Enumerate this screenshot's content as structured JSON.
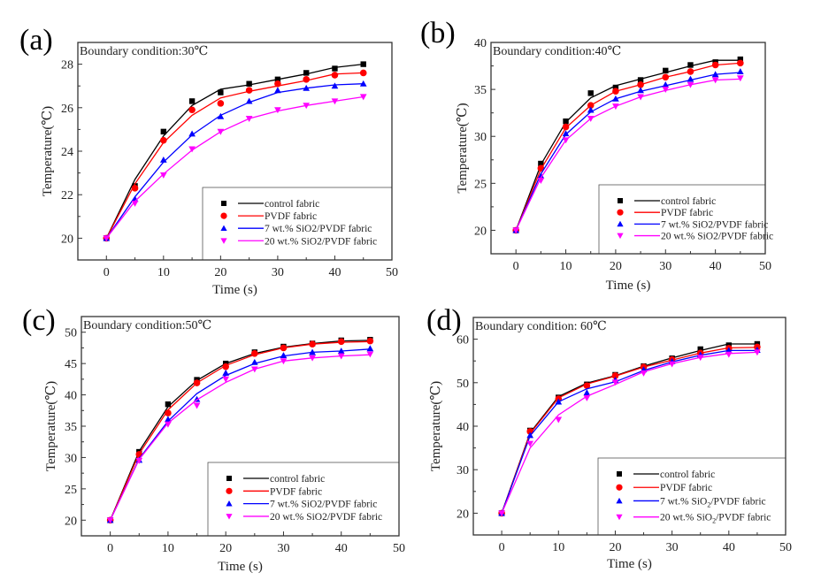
{
  "figure": {
    "series_names": [
      "control fabric",
      "PVDF fabric",
      "7 wt.% SiO2/PVDF fabric",
      "20 wt.% SiO2/PVDF fabric"
    ],
    "series_colors": [
      "#000000",
      "#ff0000",
      "#0000ff",
      "#ff00ff"
    ],
    "series_markers": [
      "square",
      "circle",
      "triangle-up",
      "triangle-down"
    ]
  },
  "chart_data": [
    {
      "type": "line",
      "panel_label": "(a)",
      "annotation": "Boundary condition:30℃",
      "xlabel": "Time (s)",
      "ylabel": "Temperature(℃)",
      "xlim": [
        -5,
        50
      ],
      "ylim": [
        19,
        29
      ],
      "xticks": [
        0,
        10,
        20,
        30,
        40,
        50
      ],
      "yticks": [
        20,
        22,
        24,
        26,
        28
      ],
      "grid": false,
      "legend_position": "bottom-right",
      "x": [
        0,
        5,
        10,
        15,
        20,
        25,
        30,
        35,
        40,
        45
      ],
      "series": [
        {
          "name": "control fabric",
          "marker": "square",
          "color": "#000000",
          "points": [
            20.0,
            22.4,
            24.9,
            26.3,
            26.7,
            27.1,
            27.3,
            27.6,
            27.8,
            28.0
          ],
          "fit": [
            20.0,
            22.7,
            24.7,
            26.1,
            26.85,
            27.05,
            27.3,
            27.55,
            27.85,
            28.0
          ]
        },
        {
          "name": "PVDF fabric",
          "marker": "circle",
          "color": "#ff0000",
          "points": [
            20.0,
            22.3,
            24.5,
            25.9,
            26.2,
            26.8,
            27.1,
            27.3,
            27.5,
            27.6
          ],
          "fit": [
            20.0,
            22.5,
            24.4,
            25.65,
            26.45,
            26.75,
            27.0,
            27.25,
            27.55,
            27.6
          ]
        },
        {
          "name": "7 wt.% SiO2/PVDF fabric",
          "marker": "triangle-up",
          "color": "#0000ff",
          "points": [
            20.0,
            21.8,
            23.6,
            24.8,
            25.6,
            26.3,
            26.8,
            26.9,
            27.0,
            27.1
          ],
          "fit": [
            20.0,
            21.9,
            23.5,
            24.75,
            25.65,
            26.25,
            26.7,
            26.9,
            27.05,
            27.1
          ]
        },
        {
          "name": "20 wt.% SiO2/PVDF fabric",
          "marker": "triangle-down",
          "color": "#ff00ff",
          "points": [
            20.0,
            21.6,
            22.9,
            24.1,
            24.9,
            25.5,
            25.9,
            26.1,
            26.3,
            26.5
          ],
          "fit": [
            20.0,
            21.7,
            22.95,
            24.05,
            24.9,
            25.5,
            25.85,
            26.1,
            26.3,
            26.5
          ]
        }
      ]
    },
    {
      "type": "line",
      "panel_label": "(b)",
      "annotation": "Boundary condition:40℃",
      "xlabel": "Time (s)",
      "ylabel": "Temperature(℃)",
      "xlim": [
        -5,
        50
      ],
      "ylim": [
        17.5,
        40
      ],
      "xticks": [
        0,
        10,
        20,
        30,
        40,
        50
      ],
      "yticks": [
        20,
        25,
        30,
        35,
        40
      ],
      "grid": false,
      "legend_position": "bottom-right",
      "x": [
        0,
        5,
        10,
        15,
        20,
        25,
        30,
        35,
        40,
        45
      ],
      "series": [
        {
          "name": "control fabric",
          "marker": "square",
          "color": "#000000",
          "points": [
            20.0,
            27.1,
            31.6,
            34.6,
            35.2,
            36.0,
            37.0,
            37.6,
            37.9,
            38.2
          ],
          "fit": [
            20.0,
            27.0,
            31.5,
            34.1,
            35.4,
            36.1,
            36.8,
            37.5,
            38.1,
            38.1
          ]
        },
        {
          "name": "PVDF fabric",
          "marker": "circle",
          "color": "#ff0000",
          "points": [
            20.0,
            26.6,
            31.0,
            33.3,
            34.8,
            35.5,
            36.3,
            36.9,
            37.6,
            37.8
          ],
          "fit": [
            20.0,
            26.5,
            30.9,
            33.3,
            34.8,
            35.5,
            36.3,
            36.9,
            37.6,
            37.8
          ]
        },
        {
          "name": "7 wt.% SiO2/PVDF fabric",
          "marker": "triangle-up",
          "color": "#0000ff",
          "points": [
            20.0,
            25.8,
            30.3,
            32.8,
            34.0,
            34.9,
            35.5,
            36.1,
            36.6,
            36.9
          ],
          "fit": [
            20.0,
            26.0,
            30.2,
            32.6,
            34.0,
            34.8,
            35.4,
            36.0,
            36.6,
            36.8
          ]
        },
        {
          "name": "20 wt.% SiO2/PVDF fabric",
          "marker": "triangle-down",
          "color": "#ff00ff",
          "points": [
            20.0,
            25.3,
            29.6,
            31.9,
            33.2,
            34.2,
            35.0,
            35.5,
            36.0,
            36.2
          ],
          "fit": [
            20.0,
            25.6,
            29.6,
            31.9,
            33.2,
            34.2,
            34.9,
            35.5,
            36.0,
            36.1
          ]
        }
      ]
    },
    {
      "type": "line",
      "panel_label": "(c)",
      "annotation": "Boundary condition:50℃",
      "xlabel": "Time (s)",
      "ylabel": "Temperature(℃)",
      "xlim": [
        -5,
        50
      ],
      "ylim": [
        17.5,
        52.5
      ],
      "xticks": [
        0,
        10,
        20,
        30,
        40,
        50
      ],
      "yticks": [
        20,
        25,
        30,
        35,
        40,
        45,
        50
      ],
      "grid": false,
      "legend_position": "bottom-right",
      "x": [
        0,
        5,
        10,
        15,
        20,
        25,
        30,
        35,
        40,
        45
      ],
      "series": [
        {
          "name": "control fabric",
          "marker": "square",
          "color": "#000000",
          "points": [
            20.0,
            30.9,
            38.5,
            42.4,
            45.0,
            46.8,
            47.7,
            48.2,
            48.7,
            48.8
          ],
          "fit": [
            20.0,
            31.0,
            38.1,
            42.3,
            45.0,
            46.6,
            47.6,
            48.2,
            48.6,
            48.7
          ]
        },
        {
          "name": "PVDF fabric",
          "marker": "circle",
          "color": "#ff0000",
          "points": [
            20.0,
            30.5,
            37.1,
            41.9,
            44.5,
            46.6,
            47.5,
            48.1,
            48.5,
            48.6
          ],
          "fit": [
            20.0,
            30.6,
            37.6,
            41.9,
            44.7,
            46.4,
            47.5,
            48.1,
            48.4,
            48.5
          ]
        },
        {
          "name": "7 wt.% SiO2/PVDF fabric",
          "marker": "triangle-up",
          "color": "#0000ff",
          "points": [
            20.0,
            29.6,
            36.1,
            39.3,
            43.5,
            45.2,
            46.3,
            46.8,
            47.0,
            47.4
          ],
          "fit": [
            20.0,
            29.8,
            35.8,
            40.2,
            43.1,
            45.0,
            46.2,
            46.8,
            47.0,
            47.3
          ]
        },
        {
          "name": "20 wt.% SiO2/PVDF fabric",
          "marker": "triangle-down",
          "color": "#ff00ff",
          "points": [
            20.0,
            29.5,
            35.3,
            38.3,
            42.5,
            44.1,
            45.4,
            45.9,
            46.2,
            46.5
          ],
          "fit": [
            20.0,
            29.7,
            35.5,
            39.2,
            42.0,
            44.1,
            45.4,
            45.9,
            46.2,
            46.4
          ]
        }
      ]
    },
    {
      "type": "line",
      "panel_label": "(d)",
      "annotation": "Boundary condition: 60℃",
      "xlabel": "Time (s)",
      "ylabel": "Temperature(℃)",
      "xlim": [
        -5,
        50
      ],
      "ylim": [
        15,
        65
      ],
      "xticks": [
        0,
        10,
        20,
        30,
        40,
        50
      ],
      "yticks": [
        20,
        30,
        40,
        50,
        60
      ],
      "grid": false,
      "legend_position": "bottom-right",
      "legend_subscript_sio2": true,
      "x": [
        0,
        5,
        10,
        15,
        20,
        25,
        30,
        35,
        40,
        45
      ],
      "series": [
        {
          "name": "control fabric",
          "marker": "square",
          "color": "#000000",
          "points": [
            20.0,
            39.0,
            46.6,
            49.6,
            51.8,
            53.8,
            55.6,
            57.7,
            58.6,
            58.9
          ],
          "fit": [
            20.0,
            38.5,
            46.8,
            49.9,
            51.6,
            53.8,
            55.7,
            57.4,
            58.9,
            58.9
          ]
        },
        {
          "name": "PVDF fabric",
          "marker": "circle",
          "color": "#ff0000",
          "points": [
            20.0,
            38.8,
            46.3,
            49.3,
            51.6,
            53.6,
            55.3,
            56.8,
            57.9,
            58.2
          ],
          "fit": [
            20.0,
            38.3,
            46.5,
            49.7,
            51.5,
            53.6,
            55.2,
            56.8,
            58.0,
            58.1
          ]
        },
        {
          "name": "7 wt.% SiO2/PVDF fabric",
          "marker": "triangle-up",
          "color": "#0000ff",
          "points": [
            20.0,
            37.9,
            45.6,
            47.7,
            50.6,
            53.0,
            54.9,
            56.4,
            57.4,
            57.5
          ],
          "fit": [
            20.0,
            37.8,
            45.6,
            48.6,
            50.2,
            52.8,
            54.8,
            56.3,
            57.4,
            57.4
          ]
        },
        {
          "name": "20 wt.% SiO2/PVDF fabric",
          "marker": "triangle-down",
          "color": "#ff00ff",
          "points": [
            20.0,
            36.0,
            41.5,
            46.5,
            50.1,
            52.2,
            54.3,
            55.8,
            56.5,
            57.0
          ],
          "fit": [
            20.0,
            35.0,
            42.6,
            46.9,
            49.6,
            52.5,
            54.4,
            55.8,
            56.7,
            57.0
          ]
        }
      ]
    }
  ]
}
